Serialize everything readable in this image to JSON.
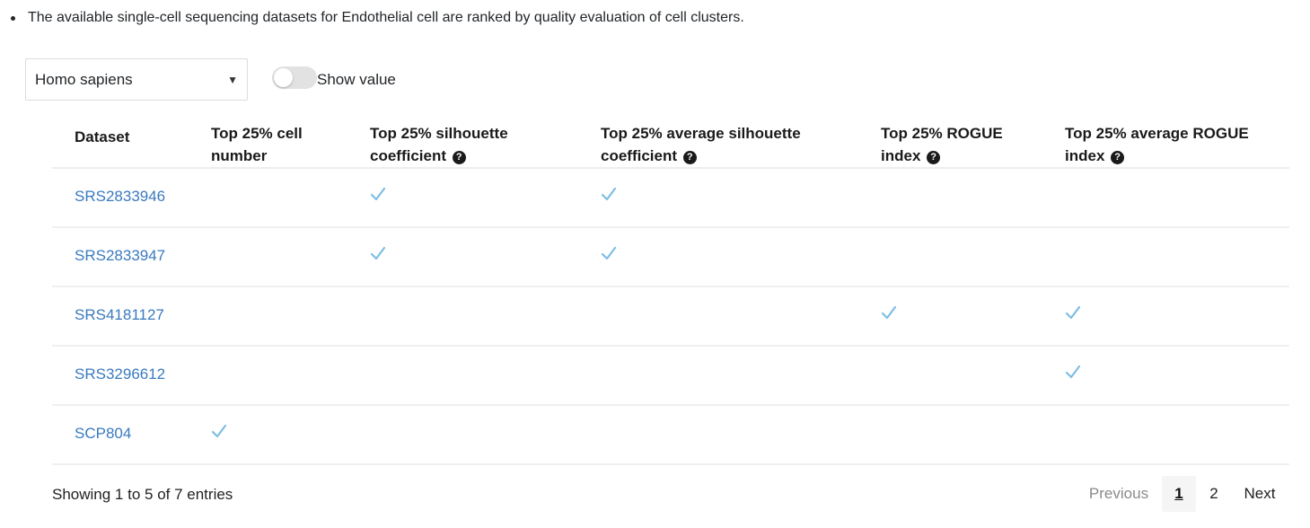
{
  "intro_text": "The available single-cell sequencing datasets for Endothelial cell are ranked by quality evaluation of cell clusters.",
  "species_select": {
    "value": "Homo sapiens"
  },
  "toggle": {
    "label": "Show value",
    "on": false
  },
  "table": {
    "headers": [
      {
        "line1": "Dataset",
        "line2": ""
      },
      {
        "line1": "Top 25% cell",
        "line2": "number"
      },
      {
        "line1": "Top 25% silhouette",
        "line2": "coefficient"
      },
      {
        "line1": "Top 25% average silhouette",
        "line2": "coefficient"
      },
      {
        "line1": "Top 25% ROGUE",
        "line2": "index"
      },
      {
        "line1": "Top 25% average ROGUE",
        "line2": "index"
      }
    ],
    "rows": [
      {
        "dataset": "SRS2833946",
        "checks": [
          false,
          true,
          true,
          false,
          false
        ]
      },
      {
        "dataset": "SRS2833947",
        "checks": [
          false,
          true,
          true,
          false,
          false
        ]
      },
      {
        "dataset": "SRS4181127",
        "checks": [
          false,
          false,
          false,
          true,
          true
        ]
      },
      {
        "dataset": "SRS3296612",
        "checks": [
          false,
          false,
          false,
          false,
          true
        ]
      },
      {
        "dataset": "SCP804",
        "checks": [
          true,
          false,
          false,
          false,
          false
        ]
      }
    ]
  },
  "info_text": "Showing 1 to 5 of 7 entries",
  "pagination": {
    "previous": "Previous",
    "pages": [
      "1",
      "2"
    ],
    "current": "1",
    "next": "Next"
  },
  "colors": {
    "link": "#3a7abf",
    "check": "#7fbde4"
  },
  "icons": {
    "help": "question-circle-icon",
    "check": "checkmark-icon",
    "caret": "caret-down-icon"
  }
}
